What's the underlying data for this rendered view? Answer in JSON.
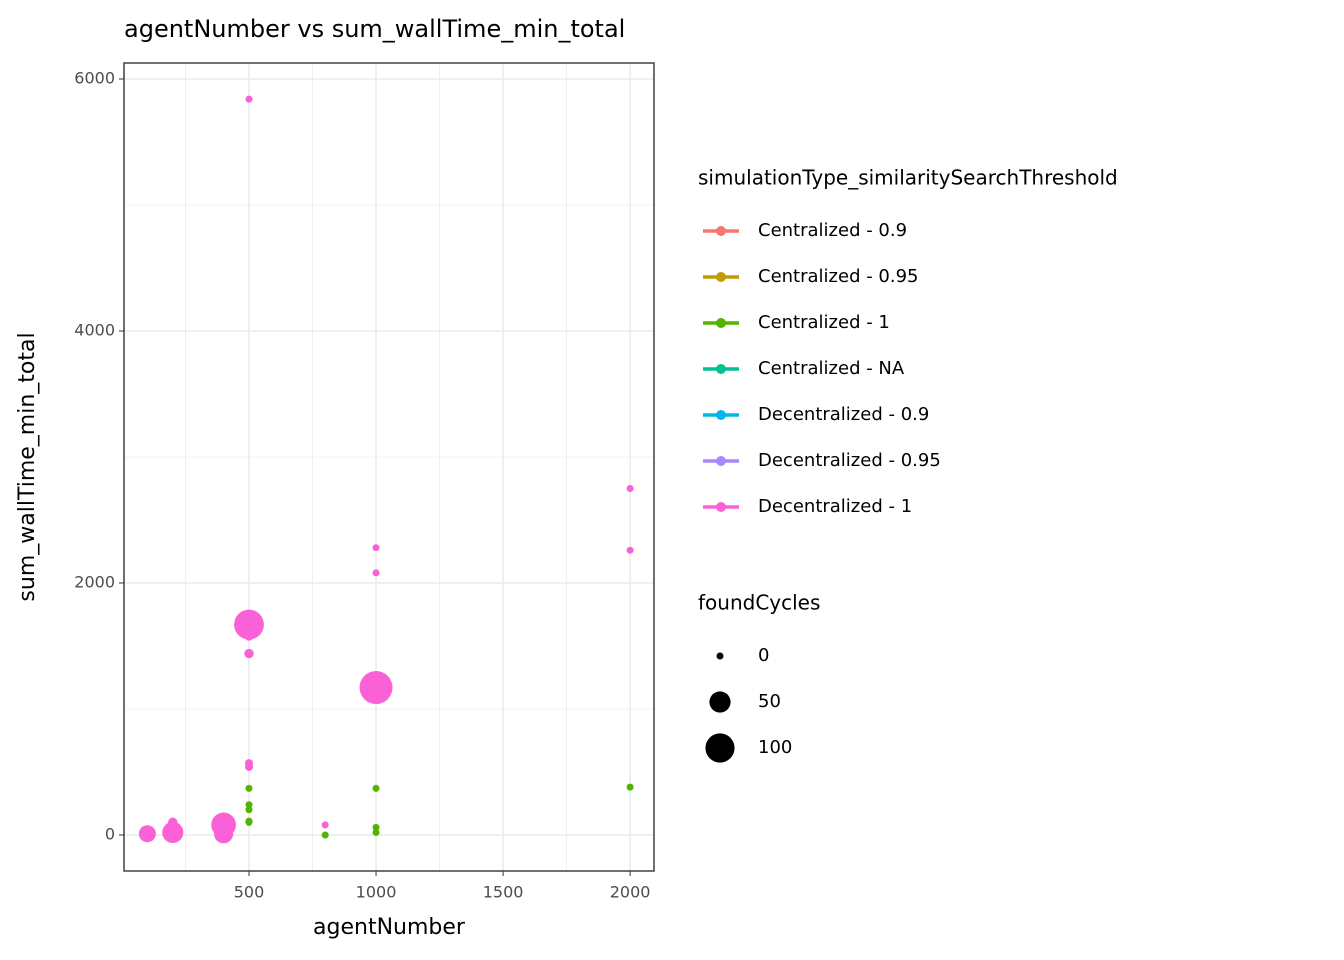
{
  "chart_data": {
    "type": "scatter",
    "title": "agentNumber  vs  sum_wallTime_min_total",
    "x_label": "agentNumber",
    "y_label": "sum_wallTime_min_total",
    "xlim": [
      8,
      2094
    ],
    "ylim": [
      -286,
      6127
    ],
    "xticks": [
      500,
      1000,
      1500,
      2000
    ],
    "yticks": [
      0,
      2000,
      4000,
      6000
    ],
    "x_minor_ticks": [
      250,
      750,
      1250,
      1750
    ],
    "y_minor_ticks": [
      1000,
      3000,
      5000
    ],
    "grid": true,
    "legend_title": "simulationType_similaritySearchThreshold",
    "size_legend": {
      "title": "foundCycles",
      "values": [
        0,
        50,
        100
      ]
    },
    "series": [
      {
        "name": "Centralized - 0.9",
        "color": "#F8766D",
        "x": [
          200,
          100
        ],
        "y": [
          60,
          20
        ],
        "size": [
          0,
          0
        ]
      },
      {
        "name": "Centralized - 0.95",
        "color": "#C49A00",
        "x": [
          200
        ],
        "y": [
          80
        ],
        "size": [
          0
        ]
      },
      {
        "name": "Centralized - 1",
        "color": "#53B400",
        "x": [
          500,
          500,
          500,
          500,
          500,
          1000,
          1000,
          1000,
          800,
          2000,
          400,
          400,
          200,
          100
        ],
        "y": [
          370,
          240,
          200,
          110,
          100,
          370,
          60,
          20,
          0,
          380,
          20,
          40,
          110,
          10
        ],
        "size": [
          0,
          0,
          0,
          0,
          0,
          0,
          0,
          0,
          0,
          0,
          0,
          0,
          0,
          0
        ]
      },
      {
        "name": "Centralized - NA",
        "color": "#00C094",
        "x": [],
        "y": [],
        "size": []
      },
      {
        "name": "Decentralized - 0.9",
        "color": "#00B6EB",
        "x": [],
        "y": [],
        "size": []
      },
      {
        "name": "Decentralized - 0.95",
        "color": "#A58AFF",
        "x": [
          200,
          100
        ],
        "y": [
          10,
          0
        ],
        "size": [
          0,
          0
        ]
      },
      {
        "name": "Decentralized - 1",
        "color": "#FB61D7",
        "x": [
          500,
          2000,
          2000,
          1000,
          1000,
          500,
          500,
          500,
          500,
          500,
          1000,
          800,
          400,
          400,
          200,
          100,
          200
        ],
        "y": [
          5840,
          2750,
          2260,
          2280,
          2080,
          1670,
          1580,
          1440,
          570,
          540,
          1170,
          80,
          80,
          10,
          20,
          10,
          100
        ],
        "size": [
          0,
          0,
          0,
          0,
          0,
          105,
          5,
          5,
          2,
          2,
          130,
          0,
          70,
          40,
          50,
          30,
          5
        ]
      }
    ]
  }
}
